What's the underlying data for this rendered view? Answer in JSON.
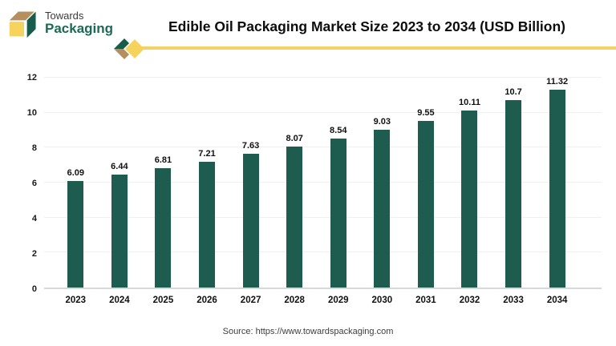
{
  "header": {
    "logo": {
      "line1": "Towards",
      "line2": "Packaging"
    },
    "title": "Edible Oil Packaging Market Size 2023 to 2034 (USD Billion)"
  },
  "chart_data": {
    "type": "bar",
    "title": "Edible Oil Packaging Market Size 2023 to 2034 (USD Billion)",
    "categories": [
      "2023",
      "2024",
      "2025",
      "2026",
      "2027",
      "2028",
      "2029",
      "2030",
      "2031",
      "2032",
      "2033",
      "2034"
    ],
    "values": [
      6.09,
      6.44,
      6.81,
      7.21,
      7.63,
      8.07,
      8.54,
      9.03,
      9.55,
      10.11,
      10.7,
      11.32
    ],
    "value_labels": [
      "6.09",
      "6.44",
      "6.81",
      "7.21",
      "7.63",
      "8.07",
      "8.54",
      "9.03",
      "9.55",
      "10.11",
      "10.7",
      "11.32"
    ],
    "xlabel": "",
    "ylabel": "",
    "ylim": [
      0,
      12
    ],
    "yticks": [
      0,
      2,
      4,
      6,
      8,
      10,
      12
    ],
    "grid": true,
    "legend_position": "none",
    "bar_color": "#1D5C4E"
  },
  "footer": {
    "source": "Source: https://www.towardspackaging.com"
  },
  "colors": {
    "bar": "#1D5C4E",
    "accent_yellow": "#F2D265",
    "logo_green": "#185C4C",
    "logo_tan": "#B68F5E",
    "logo_yellow": "#F6D35C",
    "baseline": "#D8D8D8",
    "gridline": "#F0F0F0"
  }
}
